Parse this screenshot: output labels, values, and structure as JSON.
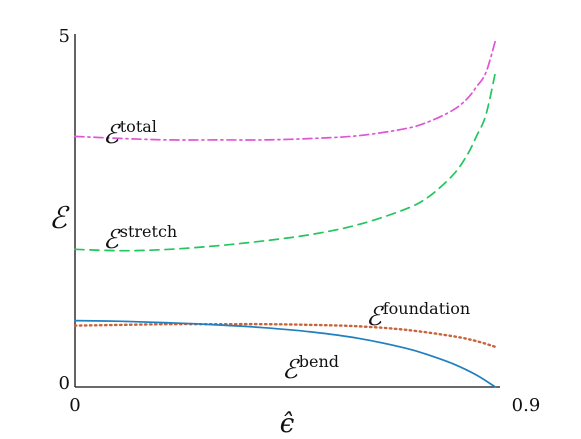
{
  "chart_data": {
    "type": "line",
    "xlabel": "ϵ̂",
    "ylabel": "ℰ",
    "xlim": [
      0,
      0.9
    ],
    "ylim": [
      0,
      5
    ],
    "x_ticks": [
      "0",
      "0.9"
    ],
    "y_ticks": [
      "0",
      "5"
    ],
    "grid": false,
    "series": [
      {
        "name": "total",
        "color": "#e055d8",
        "style": "dashdot",
        "x": [
          0,
          0.1,
          0.2,
          0.3,
          0.4,
          0.5,
          0.6,
          0.7,
          0.75,
          0.8,
          0.83,
          0.85,
          0.87,
          0.89
        ],
        "y": [
          3.55,
          3.52,
          3.5,
          3.5,
          3.5,
          3.52,
          3.56,
          3.66,
          3.76,
          3.92,
          4.08,
          4.25,
          4.45,
          4.9
        ]
      },
      {
        "name": "stretch",
        "color": "#22c55e",
        "style": "dashed",
        "x": [
          0,
          0.1,
          0.2,
          0.3,
          0.4,
          0.5,
          0.6,
          0.7,
          0.75,
          0.8,
          0.83,
          0.85,
          0.87,
          0.89
        ],
        "y": [
          1.95,
          1.93,
          1.95,
          2.0,
          2.07,
          2.16,
          2.3,
          2.52,
          2.7,
          3.0,
          3.28,
          3.55,
          3.85,
          4.45
        ]
      },
      {
        "name": "foundation",
        "color": "#c8643c",
        "style": "dotted",
        "x": [
          0,
          0.1,
          0.2,
          0.3,
          0.4,
          0.5,
          0.6,
          0.7,
          0.8,
          0.85,
          0.89
        ],
        "y": [
          0.87,
          0.88,
          0.89,
          0.89,
          0.89,
          0.88,
          0.86,
          0.81,
          0.72,
          0.65,
          0.57
        ]
      },
      {
        "name": "bend",
        "color": "#1f7fbf",
        "style": "solid",
        "x": [
          0,
          0.1,
          0.2,
          0.3,
          0.4,
          0.5,
          0.6,
          0.7,
          0.75,
          0.8,
          0.85,
          0.89
        ],
        "y": [
          0.94,
          0.93,
          0.91,
          0.88,
          0.84,
          0.78,
          0.69,
          0.55,
          0.45,
          0.33,
          0.17,
          0.0
        ]
      }
    ]
  }
}
